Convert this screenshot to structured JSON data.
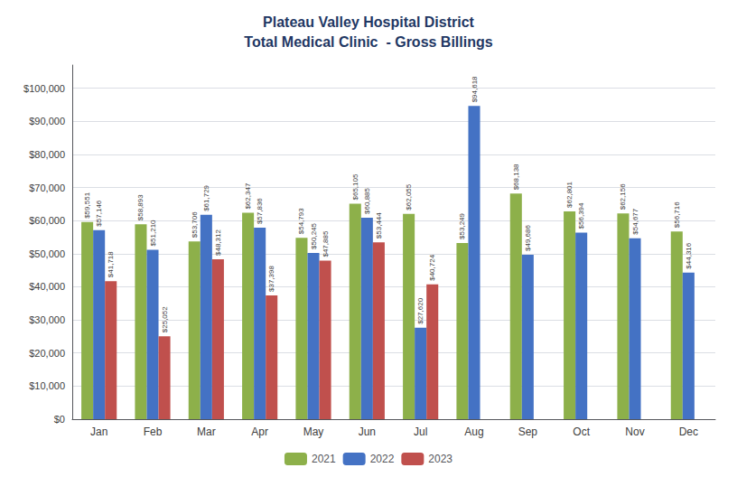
{
  "chart_data": {
    "type": "bar",
    "title": "Plateau Valley Hospital District\nTotal Medical Clinic  - Gross Billings",
    "categories": [
      "Jan",
      "Feb",
      "Mar",
      "Apr",
      "May",
      "Jun",
      "Jul",
      "Aug",
      "Sep",
      "Oct",
      "Nov",
      "Dec"
    ],
    "series": [
      {
        "name": "2021",
        "color": "#8db04a",
        "values": [
          59551,
          58893,
          53706,
          62347,
          54793,
          65105,
          62055,
          53249,
          68138,
          62801,
          62156,
          56716
        ],
        "value_labels": [
          "$59,551",
          "$58,893",
          "$53,706",
          "$62,347",
          "$54,793",
          "$65,105",
          "$62,055",
          "$53,249",
          "$68,138",
          "$62,801",
          "$62,156",
          "$56,716"
        ]
      },
      {
        "name": "2022",
        "color": "#4472c4",
        "values": [
          57146,
          51210,
          61729,
          57836,
          50245,
          60885,
          27620,
          94618,
          49686,
          56394,
          54677,
          44316
        ],
        "value_labels": [
          "$57,146",
          "$51,210",
          "$61,729",
          "$57,836",
          "$50,245",
          "$60,885",
          "$27,620",
          "$94,618",
          "$49,686",
          "$56,394",
          "$54,677",
          "$44,316"
        ]
      },
      {
        "name": "2023",
        "color": "#c0504d",
        "values": [
          41718,
          25052,
          48312,
          37398,
          47885,
          53444,
          40724,
          null,
          null,
          null,
          null,
          null
        ],
        "value_labels": [
          "$41,718",
          "$25,052",
          "$48,312",
          "$37,398",
          "$47,885",
          "$53,444",
          "$40,724",
          null,
          null,
          null,
          null,
          null
        ]
      }
    ],
    "ylim": [
      0,
      107000
    ],
    "yticks": [
      {
        "value": 0,
        "label": "$0"
      },
      {
        "value": 10000,
        "label": "$10,000"
      },
      {
        "value": 20000,
        "label": "$20,000"
      },
      {
        "value": 30000,
        "label": "$30,000"
      },
      {
        "value": 40000,
        "label": "$40,000"
      },
      {
        "value": 50000,
        "label": "$50,000"
      },
      {
        "value": 60000,
        "label": "$60,000"
      },
      {
        "value": 70000,
        "label": "$70,000"
      },
      {
        "value": 80000,
        "label": "$80,000"
      },
      {
        "value": 90000,
        "label": "$90,000"
      },
      {
        "value": 100000,
        "label": "$100,000"
      }
    ],
    "grid": true,
    "legend": "bottom",
    "data_labels": true
  }
}
